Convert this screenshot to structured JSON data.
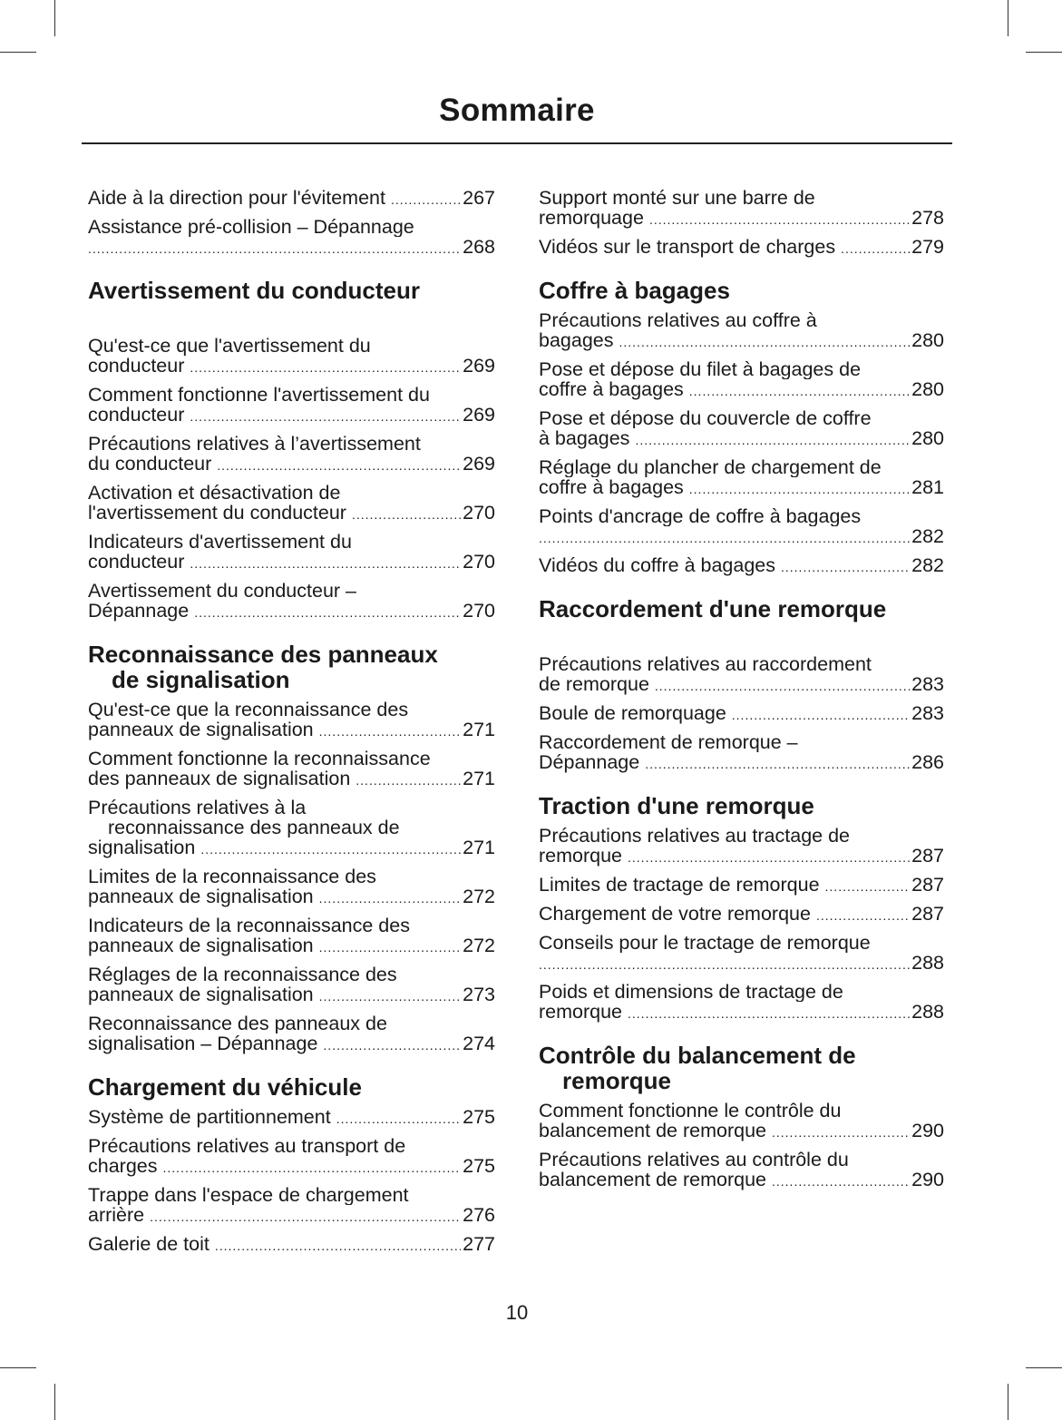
{
  "title": "Sommaire",
  "page_number": "10",
  "columns": [
    [
      {
        "type": "entry",
        "lines": [
          "Aide à la direction pour l'évitement"
        ],
        "page": "267"
      },
      {
        "type": "entry",
        "lines": [
          "Assistance pré-collision – Dépannage",
          ""
        ],
        "page": "268"
      },
      {
        "type": "heading",
        "lines": [
          "Avertissement du conducteur"
        ],
        "loose": true
      },
      {
        "type": "entry",
        "lines": [
          "Qu'est-ce que l'avertissement du",
          "conducteur"
        ],
        "page": "269"
      },
      {
        "type": "entry",
        "lines": [
          "Comment fonctionne l'avertissement du",
          "conducteur"
        ],
        "page": "269"
      },
      {
        "type": "entry",
        "lines": [
          "Précautions relatives à l’avertissement",
          "du conducteur"
        ],
        "page": "269"
      },
      {
        "type": "entry",
        "lines": [
          "Activation et désactivation de",
          "l'avertissement du conducteur"
        ],
        "page": "270"
      },
      {
        "type": "entry",
        "lines": [
          "Indicateurs d'avertissement du",
          "conducteur"
        ],
        "page": "270"
      },
      {
        "type": "entry",
        "lines": [
          "Avertissement du conducteur –",
          "Dépannage"
        ],
        "page": "270"
      },
      {
        "type": "heading",
        "lines": [
          "Reconnaissance des panneaux",
          "de signalisation"
        ]
      },
      {
        "type": "entry",
        "lines": [
          "Qu'est-ce que la reconnaissance des",
          "panneaux de signalisation"
        ],
        "page": "271"
      },
      {
        "type": "entry",
        "lines": [
          "Comment fonctionne la reconnaissance",
          "des panneaux de signalisation"
        ],
        "page": "271"
      },
      {
        "type": "entry",
        "lines": [
          "Précautions relatives à la",
          "reconnaissance des panneaux de",
          "signalisation"
        ],
        "page": "271"
      },
      {
        "type": "entry",
        "lines": [
          "Limites de la reconnaissance des",
          "panneaux de signalisation"
        ],
        "page": "272"
      },
      {
        "type": "entry",
        "lines": [
          "Indicateurs de la reconnaissance des",
          "panneaux de signalisation"
        ],
        "page": "272"
      },
      {
        "type": "entry",
        "lines": [
          "Réglages de la reconnaissance des",
          "panneaux de signalisation"
        ],
        "page": "273"
      },
      {
        "type": "entry",
        "lines": [
          "Reconnaissance des panneaux de",
          "signalisation – Dépannage"
        ],
        "page": "274"
      },
      {
        "type": "heading",
        "lines": [
          "Chargement du véhicule"
        ]
      },
      {
        "type": "entry",
        "lines": [
          "Système de partitionnement"
        ],
        "page": "275"
      },
      {
        "type": "entry",
        "lines": [
          "Précautions relatives au transport de",
          "charges"
        ],
        "page": "275"
      },
      {
        "type": "entry",
        "lines": [
          "Trappe dans l'espace de chargement",
          "arrière"
        ],
        "page": "276"
      },
      {
        "type": "entry",
        "lines": [
          "Galerie de toit"
        ],
        "page": "277"
      }
    ],
    [
      {
        "type": "entry",
        "lines": [
          "Support monté sur une barre de",
          "remorquage"
        ],
        "page": "278"
      },
      {
        "type": "entry",
        "lines": [
          "Vidéos sur le transport de charges"
        ],
        "page": "279"
      },
      {
        "type": "heading",
        "lines": [
          "Coffre à bagages"
        ]
      },
      {
        "type": "entry",
        "lines": [
          "Précautions relatives au coffre à",
          "bagages"
        ],
        "page": "280"
      },
      {
        "type": "entry",
        "lines": [
          "Pose et dépose du filet à bagages de",
          "coffre à bagages"
        ],
        "page": "280"
      },
      {
        "type": "entry",
        "lines": [
          "Pose et dépose du couvercle de coffre",
          "à bagages"
        ],
        "page": "280"
      },
      {
        "type": "entry",
        "lines": [
          "Réglage du plancher de chargement de",
          "coffre à bagages"
        ],
        "page": "281"
      },
      {
        "type": "entry",
        "lines": [
          "Points d'ancrage de coffre à bagages",
          ""
        ],
        "page": "282"
      },
      {
        "type": "entry",
        "lines": [
          "Vidéos du coffre à bagages"
        ],
        "page": "282"
      },
      {
        "type": "heading",
        "lines": [
          "Raccordement d'une remorque"
        ],
        "loose": true
      },
      {
        "type": "entry",
        "lines": [
          "Précautions relatives au raccordement",
          "de remorque"
        ],
        "page": "283"
      },
      {
        "type": "entry",
        "lines": [
          "Boule de remorquage"
        ],
        "page": "283"
      },
      {
        "type": "entry",
        "lines": [
          "Raccordement de remorque –",
          "Dépannage"
        ],
        "page": "286"
      },
      {
        "type": "heading",
        "lines": [
          "Traction d'une remorque"
        ]
      },
      {
        "type": "entry",
        "lines": [
          "Précautions relatives au tractage de",
          "remorque"
        ],
        "page": "287"
      },
      {
        "type": "entry",
        "lines": [
          "Limites de tractage de remorque"
        ],
        "page": "287"
      },
      {
        "type": "entry",
        "lines": [
          "Chargement de votre remorque"
        ],
        "page": "287"
      },
      {
        "type": "entry",
        "lines": [
          "Conseils pour le tractage de remorque",
          ""
        ],
        "page": "288"
      },
      {
        "type": "entry",
        "lines": [
          "Poids et dimensions de tractage de",
          "remorque"
        ],
        "page": "288"
      },
      {
        "type": "heading",
        "lines": [
          "Contrôle du balancement de",
          "remorque"
        ]
      },
      {
        "type": "entry",
        "lines": [
          "Comment fonctionne le contrôle du",
          "balancement de remorque"
        ],
        "page": "290"
      },
      {
        "type": "entry",
        "lines": [
          "Précautions relatives au contrôle du",
          "balancement de remorque"
        ],
        "page": "290"
      }
    ]
  ]
}
